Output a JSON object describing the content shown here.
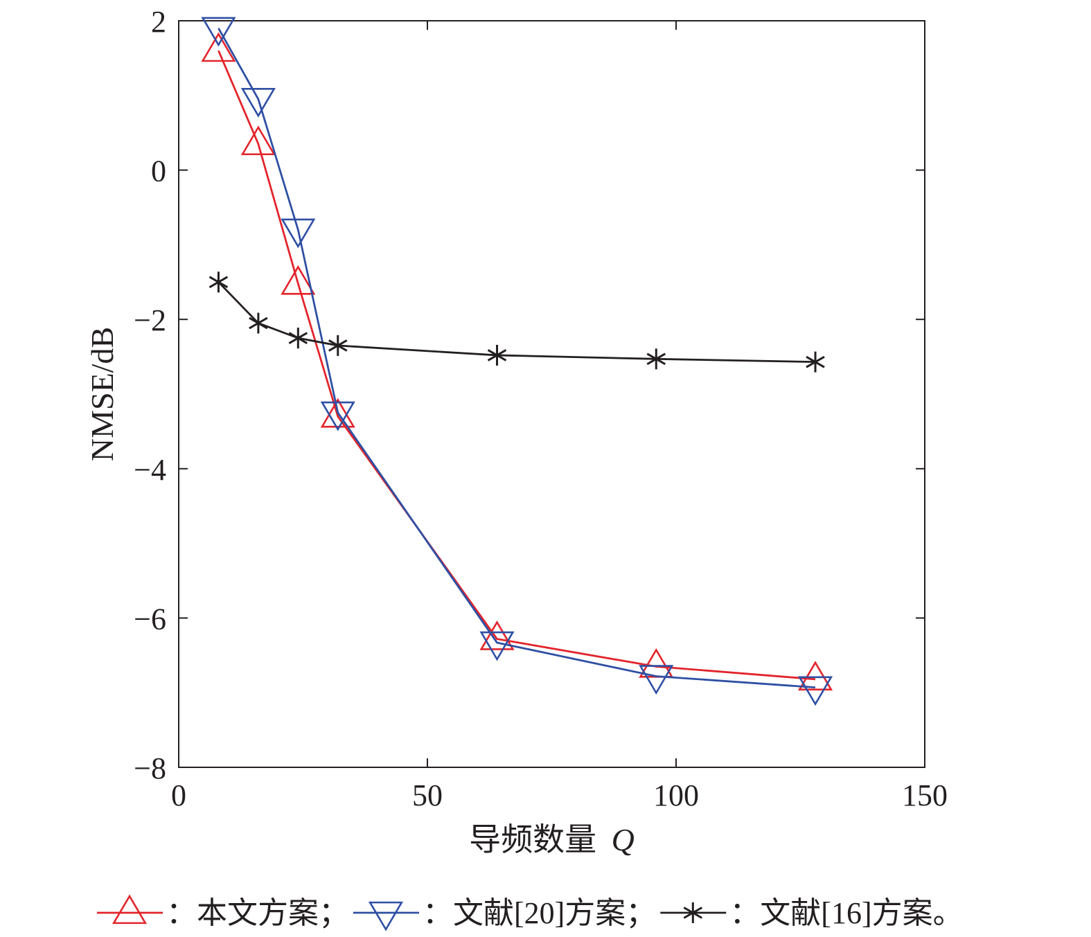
{
  "chart_data": {
    "type": "line",
    "title": "",
    "xlabel": "导频数量",
    "xlabel_var": "Q",
    "ylabel": "NMSE/dB",
    "xlim": [
      0,
      150
    ],
    "ylim": [
      -8,
      2
    ],
    "xticks": [
      0,
      50,
      100,
      150
    ],
    "xtick_labels": [
      "0",
      "50",
      "100",
      "150"
    ],
    "yticks": [
      -8,
      -6,
      -4,
      -2,
      0,
      2
    ],
    "ytick_labels": [
      "−8",
      "−6",
      "−4",
      "−2",
      "0",
      "2"
    ],
    "grid": false,
    "legend_position": "bottom",
    "x": [
      8,
      16,
      24,
      32,
      64,
      96,
      128
    ],
    "series": [
      {
        "name": "本文方案",
        "legend_text": "：本文方案；",
        "color": "#e3242b",
        "marker": "triangle-up",
        "values": [
          1.6,
          0.35,
          -1.52,
          -3.3,
          -6.28,
          -6.65,
          -6.82
        ]
      },
      {
        "name": "文献[20]方案",
        "legend_text": "：文献[20]方案；",
        "color": "#2e4fa3",
        "marker": "triangle-down",
        "values": [
          1.9,
          0.95,
          -0.8,
          -3.25,
          -6.33,
          -6.78,
          -6.93
        ]
      },
      {
        "name": "文献[16]方案",
        "legend_text": "：文献[16]方案。",
        "color": "#231f20",
        "marker": "star",
        "values": [
          -1.5,
          -2.05,
          -2.25,
          -2.35,
          -2.48,
          -2.53,
          -2.57
        ]
      }
    ]
  }
}
